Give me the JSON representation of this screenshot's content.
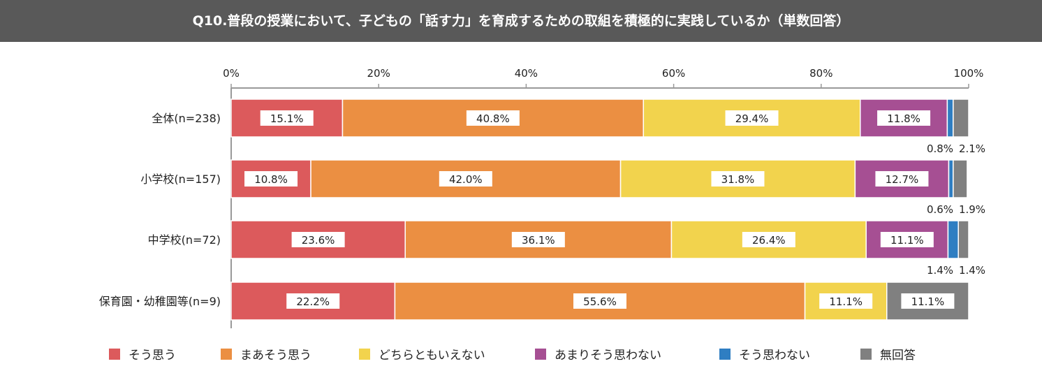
{
  "title": "Q10.普段の授業において、子どもの「話す力」を育成するための取組を積極的に実践しているか（単数回答）",
  "chart_data": {
    "type": "bar",
    "orientation": "horizontal",
    "stacked": true,
    "xlim": [
      0,
      100
    ],
    "x_ticks": [
      "0%",
      "20%",
      "40%",
      "60%",
      "80%",
      "100%"
    ],
    "categories": [
      "全体(n=238)",
      "小学校(n=157)",
      "中学校(n=72)",
      "保育園・幼稚園等(n=9)"
    ],
    "series": [
      {
        "name": "そう思う",
        "color": "#dc5a5c",
        "values": [
          15.1,
          10.8,
          23.6,
          22.2
        ],
        "labels": [
          "15.1%",
          "10.8%",
          "23.6%",
          "22.2%"
        ]
      },
      {
        "name": "まあそう思う",
        "color": "#eb8f42",
        "values": [
          40.8,
          42.0,
          36.1,
          55.6
        ],
        "labels": [
          "40.8%",
          "42.0%",
          "36.1%",
          "55.6%"
        ]
      },
      {
        "name": "どちらともいえない",
        "color": "#f2d34d",
        "values": [
          29.4,
          31.8,
          26.4,
          11.1
        ],
        "labels": [
          "29.4%",
          "31.8%",
          "26.4%",
          "11.1%"
        ]
      },
      {
        "name": "あまりそう思わない",
        "color": "#a64f93",
        "values": [
          11.8,
          12.7,
          11.1,
          0
        ],
        "labels": [
          "11.8%",
          "12.7%",
          "11.1%",
          ""
        ]
      },
      {
        "name": "そう思わない",
        "color": "#2f7ec2",
        "values": [
          0.8,
          0.6,
          1.4,
          0
        ],
        "labels": [
          "0.8%",
          "0.6%",
          "1.4%",
          ""
        ]
      },
      {
        "name": "無回答",
        "color": "#808080",
        "values": [
          2.1,
          1.9,
          1.4,
          11.1
        ],
        "labels": [
          "2.1%",
          "1.9%",
          "1.4%",
          "11.1%"
        ]
      }
    ]
  }
}
